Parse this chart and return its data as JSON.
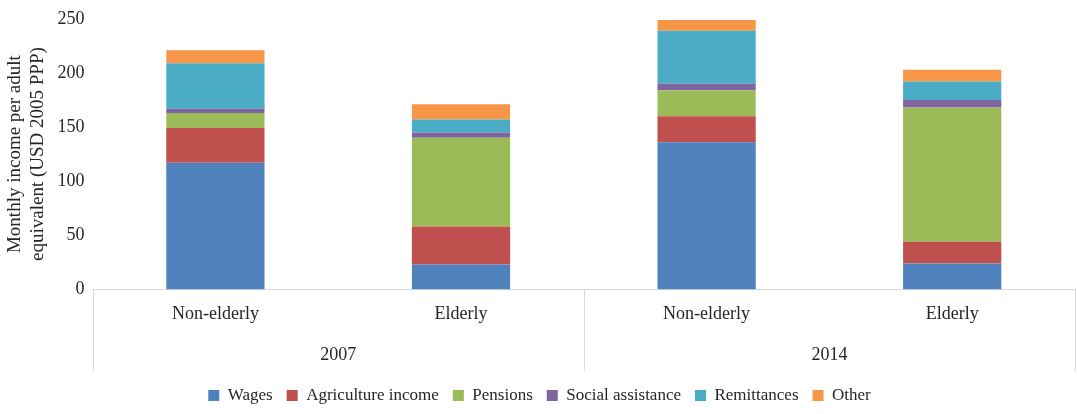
{
  "chart_data": {
    "type": "bar",
    "stacked": true,
    "ylabel": "Monthly income per adult equivalent (USD 2005 PPP)",
    "categories": [
      "Non-elderly",
      "Elderly",
      "Non-elderly",
      "Elderly"
    ],
    "annotations": [
      "2007",
      "2014"
    ],
    "ylim": [
      0,
      250
    ],
    "yticks": [
      0,
      50,
      100,
      150,
      200,
      250
    ],
    "grid": false,
    "legend": "bottom",
    "series": [
      {
        "name": "Wages",
        "color": "#4f81bd",
        "values": [
          117,
          23,
          136,
          24
        ]
      },
      {
        "name": "Agriculture income",
        "color": "#c0504d",
        "values": [
          32,
          35,
          24,
          20
        ]
      },
      {
        "name": "Pensions",
        "color": "#9bbb59",
        "values": [
          14,
          82,
          24,
          124
        ]
      },
      {
        "name": "Social assistance",
        "color": "#8064a2",
        "values": [
          4,
          5,
          6,
          7
        ]
      },
      {
        "name": "Remittances",
        "color": "#4bacc6",
        "values": [
          42,
          12,
          49,
          17
        ]
      },
      {
        "name": "Other",
        "color": "#f79646",
        "values": [
          12,
          14,
          10,
          11
        ]
      }
    ]
  }
}
